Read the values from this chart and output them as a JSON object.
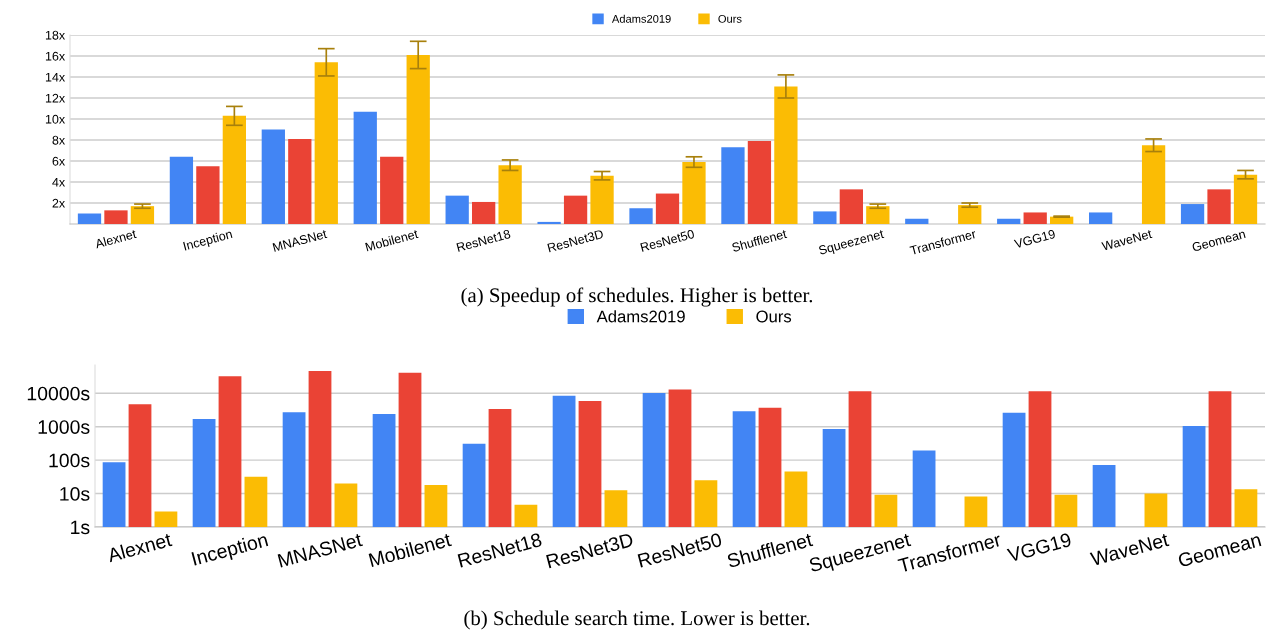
{
  "chart_data": [
    {
      "type": "bar",
      "categories": [
        "Alexnet",
        "Inception",
        "MNASNet",
        "Mobilenet",
        "ResNet18",
        "ResNet3D",
        "ResNet50",
        "Shufflenet",
        "Squeezenet",
        "Transformer",
        "VGG19",
        "WaveNet",
        "Geomean"
      ],
      "series": [
        {
          "name": "Adams2019",
          "color": "#4285f4",
          "values": [
            1.0,
            6.4,
            9.0,
            10.7,
            2.7,
            0.2,
            1.5,
            7.3,
            1.2,
            0.5,
            0.5,
            1.1,
            1.9
          ]
        },
        {
          "color": "#ea4335",
          "values": [
            1.3,
            5.5,
            8.1,
            6.4,
            2.1,
            2.7,
            2.9,
            7.9,
            3.3,
            null,
            1.1,
            null,
            3.3
          ]
        },
        {
          "name": "Ours",
          "color": "#fbbc04",
          "values": [
            1.7,
            10.3,
            15.4,
            16.1,
            5.6,
            4.6,
            5.9,
            13.1,
            1.7,
            1.8,
            0.7,
            7.5,
            4.7
          ],
          "errors": [
            0.2,
            0.9,
            1.3,
            1.3,
            0.5,
            0.4,
            0.5,
            1.1,
            0.2,
            0.2,
            0.05,
            0.6,
            0.4
          ]
        }
      ],
      "ylim": [
        0,
        18
      ],
      "yticks": [
        {
          "value": 2,
          "label": "2x"
        },
        {
          "value": 4,
          "label": "4x"
        },
        {
          "value": 6,
          "label": "6x"
        },
        {
          "value": 8,
          "label": "8x"
        },
        {
          "value": 10,
          "label": "10x"
        },
        {
          "value": 12,
          "label": "12x"
        },
        {
          "value": 14,
          "label": "14x"
        },
        {
          "value": 16,
          "label": "16x"
        },
        {
          "value": 18,
          "label": "18x"
        }
      ],
      "grid": "y",
      "legend": "top",
      "annotations": [
        "(a) Speedup of schedules. Higher is better."
      ]
    },
    {
      "type": "bar",
      "categories": [
        "Alexnet",
        "Inception",
        "MNASNet",
        "Mobilenet",
        "ResNet18",
        "ResNet3D",
        "ResNet50",
        "Shufflenet",
        "Squeezenet",
        "Transformer",
        "VGG19",
        "WaveNet",
        "Geomean"
      ],
      "series": [
        {
          "name": "Adams2019",
          "color": "#4285f4",
          "values": [
            87,
            1700,
            2700,
            2400,
            310,
            8400,
            10200,
            2900,
            850,
            195,
            2600,
            71,
            1050
          ]
        },
        {
          "color": "#ea4335",
          "values": [
            4700,
            32000,
            46000,
            41000,
            3400,
            5900,
            12900,
            3700,
            11500,
            null,
            11500,
            null,
            11500
          ]
        },
        {
          "name": "Ours",
          "color": "#fbbc04",
          "values": [
            2.9,
            32,
            20,
            18,
            4.6,
            12.5,
            25,
            46,
            9.2,
            8.2,
            9.2,
            10,
            13.5
          ]
        }
      ],
      "log": true,
      "ylim": [
        1,
        70000
      ],
      "yticks": [
        {
          "value": 1,
          "label": "1s"
        },
        {
          "value": 10,
          "label": "10s"
        },
        {
          "value": 100,
          "label": "100s"
        },
        {
          "value": 1000,
          "label": "1000s"
        },
        {
          "value": 10000,
          "label": "10000s"
        }
      ],
      "grid": "y",
      "legend": "top",
      "annotations": [
        "(b) Schedule search time. Lower is better."
      ]
    }
  ]
}
